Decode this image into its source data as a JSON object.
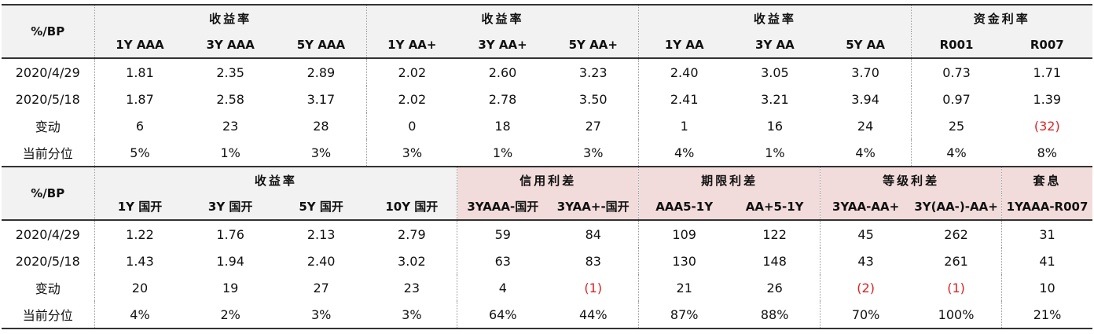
{
  "tables": [
    {
      "corner": "%/BP",
      "groups": [
        {
          "label": "收益率",
          "columns": [
            "1Y AAA",
            "3Y AAA",
            "5Y AAA"
          ]
        },
        {
          "label": "收益率",
          "columns": [
            "1Y AA+",
            "3Y AA+",
            "5Y AA+"
          ]
        },
        {
          "label": "收益率",
          "columns": [
            "1Y AA",
            "3Y AA",
            "5Y AA"
          ]
        },
        {
          "label": "资金利率",
          "columns": [
            "R001",
            "R007"
          ]
        }
      ],
      "rows": [
        {
          "label": "2020/4/29",
          "values": [
            "1.81",
            "2.35",
            "2.89",
            "2.02",
            "2.60",
            "3.23",
            "2.40",
            "3.05",
            "3.70",
            "0.73",
            "1.71"
          ]
        },
        {
          "label": "2020/5/18",
          "values": [
            "1.87",
            "2.58",
            "3.17",
            "2.02",
            "2.78",
            "3.50",
            "2.41",
            "3.21",
            "3.94",
            "0.97",
            "1.39"
          ]
        },
        {
          "label": "变动",
          "values": [
            "6",
            "23",
            "28",
            "0",
            "18",
            "27",
            "1",
            "16",
            "24",
            "25",
            "(32)"
          ]
        },
        {
          "label": "当前分位",
          "values": [
            "5%",
            "1%",
            "3%",
            "3%",
            "1%",
            "3%",
            "4%",
            "1%",
            "4%",
            "4%",
            "8%"
          ]
        }
      ]
    },
    {
      "corner": "%/BP",
      "groups": [
        {
          "label": "收益率",
          "columns": [
            "1Y 国开",
            "3Y 国开",
            "5Y 国开",
            "10Y 国开"
          ]
        },
        {
          "label": "信用利差",
          "color": "#f2dcdb",
          "columns": [
            "3YAAA-国开",
            "3YAA+-国开"
          ]
        },
        {
          "label": "期限利差",
          "color": "#f2dcdb",
          "columns": [
            "AAA5-1Y",
            "AA+5-1Y"
          ]
        },
        {
          "label": "等级利差",
          "color": "#f2dcdb",
          "columns": [
            "3YAA-AA+",
            "3Y(AA-)-AA+"
          ]
        },
        {
          "label": "套息",
          "color": "#f2dcdb",
          "columns": [
            "1YAAA-R007"
          ]
        }
      ],
      "rows": [
        {
          "label": "2020/4/29",
          "values": [
            "1.22",
            "1.76",
            "2.13",
            "2.79",
            "59",
            "84",
            "109",
            "122",
            "45",
            "262",
            "31"
          ]
        },
        {
          "label": "2020/5/18",
          "values": [
            "1.43",
            "1.94",
            "2.40",
            "3.02",
            "63",
            "83",
            "130",
            "148",
            "43",
            "261",
            "41"
          ]
        },
        {
          "label": "变动",
          "values": [
            "20",
            "19",
            "27",
            "23",
            "4",
            "(1)",
            "21",
            "26",
            "(2)",
            "(1)",
            "10"
          ]
        },
        {
          "label": "当前分位",
          "values": [
            "4%",
            "2%",
            "3%",
            "3%",
            "64%",
            "44%",
            "87%",
            "88%",
            "70%",
            "100%",
            "21%"
          ]
        }
      ]
    }
  ]
}
